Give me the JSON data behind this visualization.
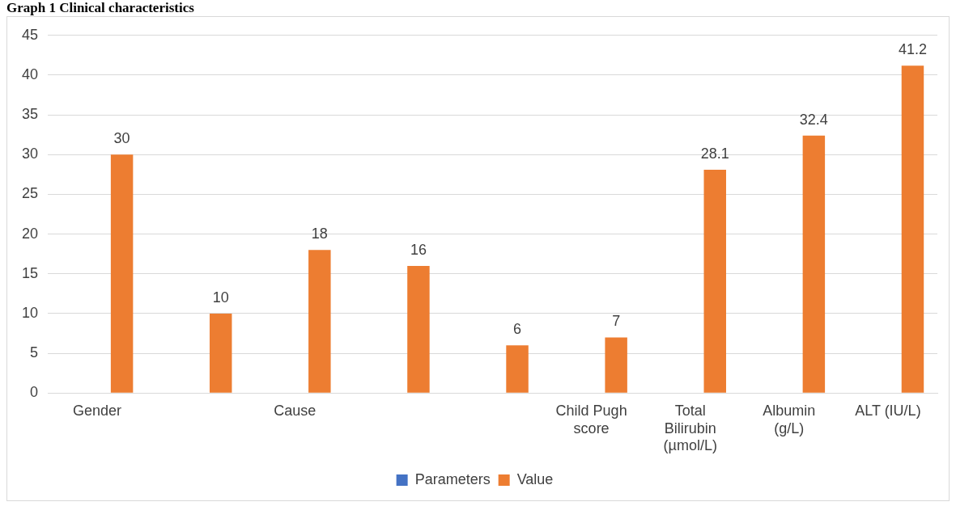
{
  "chart_data": {
    "type": "bar",
    "title": "Graph 1 Clinical characteristics",
    "categories": [
      "Gender",
      null,
      "Cause",
      null,
      null,
      "Child Pugh score",
      "Total Bilirubin (µmol/L)",
      "Albumin (g/L)",
      "ALT (IU/L)"
    ],
    "series": [
      {
        "name": "Parameters",
        "color": "#4472c4",
        "values": [
          null,
          null,
          null,
          null,
          null,
          null,
          null,
          null,
          null
        ]
      },
      {
        "name": "Value",
        "color": "#ed7d31",
        "values": [
          30,
          10,
          18,
          16,
          6,
          7,
          28.1,
          32.4,
          41.2
        ]
      }
    ],
    "ylim": [
      0,
      45
    ],
    "yticks": [
      0,
      5,
      10,
      15,
      20,
      25,
      30,
      35,
      40,
      45
    ],
    "grid": "y",
    "legend": "bottom",
    "data_labels": true
  }
}
